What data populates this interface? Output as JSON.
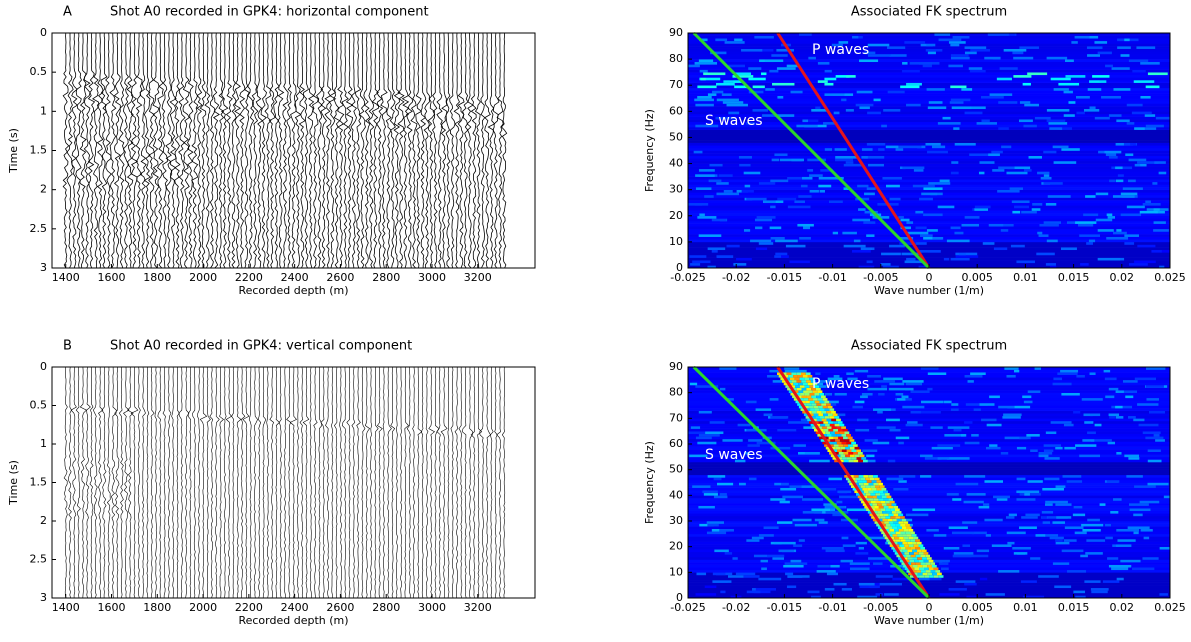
{
  "chart_data": [
    {
      "type": "seismogram",
      "panel_label": "A",
      "title": "Shot A0 recorded in GPK4: horizontal component",
      "x_label": "Recorded depth (m)",
      "y_label": "Time (s)",
      "xlim": [
        1340,
        3450
      ],
      "ylim": [
        0,
        3
      ],
      "y_reversed": true,
      "xticks": [
        1400,
        1600,
        1800,
        2000,
        2200,
        2400,
        2600,
        2800,
        3000,
        3200
      ],
      "yticks": [
        0,
        0.5,
        1,
        1.5,
        2,
        2.5,
        3
      ]
    },
    {
      "type": "spectrum",
      "title": "Associated FK spectrum",
      "x_label": "Wave number (1/m)",
      "y_label": "Frequency (Hz)",
      "xlim": [
        -0.025,
        0.025
      ],
      "ylim": [
        0,
        90
      ],
      "xticks": [
        -0.025,
        -0.02,
        -0.015,
        -0.01,
        -0.005,
        0,
        0.005,
        0.01,
        0.015,
        0.02,
        0.025
      ],
      "yticks": [
        0,
        10,
        20,
        30,
        40,
        50,
        60,
        70,
        80,
        90
      ],
      "series": [
        {
          "name": "P waves",
          "color": "#e3141c",
          "x": [
            -0.0157,
            0
          ],
          "values": [
            90,
            0
          ]
        },
        {
          "name": "S waves",
          "color": "#2bd62b",
          "x": [
            -0.0244,
            0
          ],
          "values": [
            90,
            0
          ]
        }
      ]
    },
    {
      "type": "seismogram",
      "panel_label": "B",
      "title": "Shot A0 recorded in GPK4: vertical component",
      "x_label": "Recorded depth (m)",
      "y_label": "Time (s)",
      "xlim": [
        1340,
        3450
      ],
      "ylim": [
        0,
        3
      ],
      "y_reversed": true,
      "xticks": [
        1400,
        1600,
        1800,
        2000,
        2200,
        2400,
        2600,
        2800,
        3000,
        3200
      ],
      "yticks": [
        0,
        0.5,
        1,
        1.5,
        2,
        2.5,
        3
      ]
    },
    {
      "type": "spectrum",
      "title": "Associated FK spectrum",
      "x_label": "Wave number (1/m)",
      "y_label": "Frequency (Hz)",
      "xlim": [
        -0.025,
        0.025
      ],
      "ylim": [
        0,
        90
      ],
      "xticks": [
        -0.025,
        -0.02,
        -0.015,
        -0.01,
        -0.005,
        0,
        0.005,
        0.01,
        0.015,
        0.02,
        0.025
      ],
      "yticks": [
        0,
        10,
        20,
        30,
        40,
        50,
        60,
        70,
        80,
        90
      ],
      "series": [
        {
          "name": "P waves",
          "color": "#e3141c",
          "x": [
            -0.0157,
            0
          ],
          "values": [
            90,
            0
          ]
        },
        {
          "name": "S waves",
          "color": "#2bd62b",
          "x": [
            -0.0244,
            0
          ],
          "values": [
            90,
            0
          ]
        }
      ]
    }
  ]
}
